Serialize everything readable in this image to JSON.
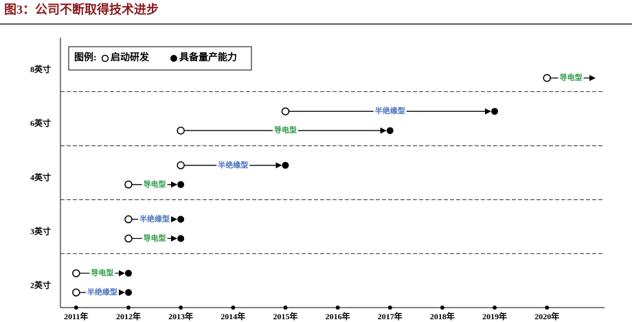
{
  "chart_data": {
    "type": "timeline",
    "title": "图3：公司不断取得技术进步",
    "legend": {
      "title": "图例:",
      "start": "启动研发",
      "end": "具备量产能力"
    },
    "categories": [
      "8英寸",
      "6英寸",
      "4英寸",
      "3英寸",
      "2英寸"
    ],
    "xlim": [
      2010.7,
      2021.1
    ],
    "xticks": [
      {
        "value": 2011,
        "label": "2011年"
      },
      {
        "value": 2012,
        "label": "2012年"
      },
      {
        "value": 2013,
        "label": "2013年"
      },
      {
        "value": 2014,
        "label": "2014年"
      },
      {
        "value": 2015,
        "label": "2015年"
      },
      {
        "value": 2016,
        "label": "2016年"
      },
      {
        "value": 2017,
        "label": "2017年"
      },
      {
        "value": 2018,
        "label": "2018年"
      },
      {
        "value": 2019,
        "label": "2019年"
      },
      {
        "value": 2020,
        "label": "2020年"
      }
    ],
    "items": [
      {
        "category": "8英寸",
        "name": "导电型",
        "start": 2020,
        "end": null,
        "color": "#2e9d4a"
      },
      {
        "category": "6英寸",
        "name": "半绝缘型",
        "start": 2015,
        "end": 2019,
        "color": "#4a72c0"
      },
      {
        "category": "6英寸",
        "name": "导电型",
        "start": 2013,
        "end": 2017,
        "color": "#2e9d4a"
      },
      {
        "category": "4英寸",
        "name": "半绝缘型",
        "start": 2013,
        "end": 2015,
        "color": "#4a72c0"
      },
      {
        "category": "4英寸",
        "name": "导电型",
        "start": 2012,
        "end": 2013,
        "color": "#2e9d4a"
      },
      {
        "category": "3英寸",
        "name": "半绝缘型",
        "start": 2012,
        "end": 2013,
        "color": "#4a72c0"
      },
      {
        "category": "3英寸",
        "name": "导电型",
        "start": 2012,
        "end": 2013,
        "color": "#2e9d4a"
      },
      {
        "category": "2英寸",
        "name": "导电型",
        "start": 2011,
        "end": 2012,
        "color": "#2e9d4a"
      },
      {
        "category": "2英寸",
        "name": "半绝缘型",
        "start": 2011,
        "end": 2012,
        "color": "#4a72c0"
      }
    ]
  }
}
